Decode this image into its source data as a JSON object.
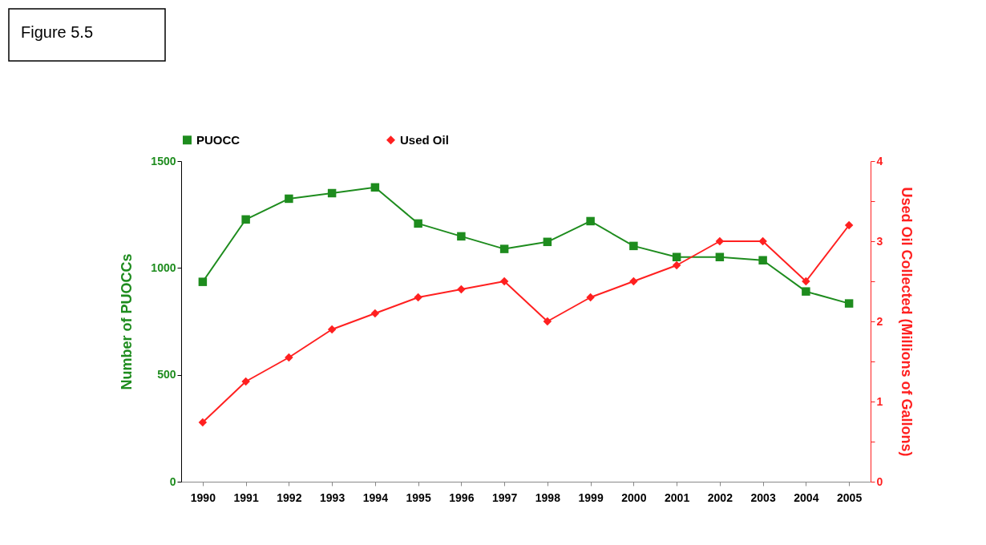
{
  "chart_data": {
    "type": "line",
    "annotations": [
      "Figure 5.5"
    ],
    "categories": [
      "1990",
      "1991",
      "1992",
      "1993",
      "1994",
      "1995",
      "1996",
      "1997",
      "1998",
      "1999",
      "2000",
      "2001",
      "2002",
      "2003",
      "2004",
      "2005"
    ],
    "series": [
      {
        "name": "PUOCC",
        "color": "#1e8c1e",
        "marker": "square",
        "values": [
          935,
          1227,
          1324,
          1350,
          1377,
          1208,
          1148,
          1089,
          1122,
          1219,
          1103,
          1051,
          1051,
          1036,
          890,
          834
        ]
      },
      {
        "name": "Used Oil",
        "color": "#ff2020",
        "marker": "diamond",
        "axis": "y2",
        "values": [
          0.74,
          1.25,
          1.55,
          1.9,
          2.1,
          2.3,
          2.4,
          2.5,
          2.0,
          2.3,
          2.5,
          2.7,
          3.0,
          3.0,
          2.5,
          3.2
        ]
      }
    ],
    "ylabel": "Number of PUOCCs",
    "y2label": "Used Oil Collected (Millions of Gallons)",
    "ylim": [
      0,
      1500
    ],
    "yticks": [
      0,
      500,
      1000,
      1500
    ],
    "y2lim": [
      0,
      4
    ],
    "y2ticks": [
      0,
      {
        "value": 0.5,
        "label": null
      },
      1,
      {
        "value": 1.5,
        "label": null
      },
      2,
      {
        "value": 2.5,
        "label": null
      },
      3,
      {
        "value": 3.5,
        "label": null
      },
      4
    ],
    "grid": false,
    "legend": "top",
    "line_style": "solid"
  }
}
